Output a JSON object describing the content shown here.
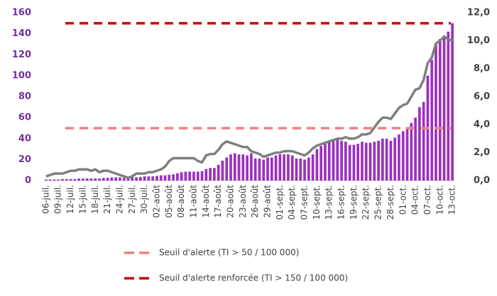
{
  "chart_data": {
    "type": "bar",
    "categories": [
      "06-juil.",
      null,
      null,
      "09-juil.",
      null,
      null,
      "12-juil.",
      null,
      null,
      "15-juil.",
      null,
      null,
      "18-juil.",
      null,
      null,
      "21-juil.",
      null,
      null,
      "24-juil.",
      null,
      null,
      "27-juil.",
      null,
      null,
      "30-juil.",
      null,
      null,
      "02-août",
      null,
      null,
      "05-août",
      null,
      null,
      "08-août",
      null,
      null,
      "11-août",
      null,
      null,
      "14-août",
      null,
      null,
      "17-août",
      null,
      null,
      "20-août",
      null,
      null,
      "23-août",
      null,
      null,
      "26-août",
      null,
      null,
      "29-août",
      null,
      null,
      "01-sept.",
      null,
      null,
      "04-sept.",
      null,
      null,
      "07-sept.",
      null,
      null,
      "10-sept.",
      null,
      null,
      "13-sept.",
      null,
      null,
      "16-sept.",
      null,
      null,
      "19-sept.",
      null,
      null,
      "22-sept.",
      null,
      null,
      "25-sept.",
      null,
      null,
      "28-sept.",
      null,
      null,
      "01-oct.",
      null,
      null,
      "04-oct.",
      null,
      null,
      "07-oct.",
      null,
      null,
      "10-oct.",
      null,
      null,
      "13-oct."
    ],
    "series": [
      {
        "color": "#9b30c0",
        "values": [
          1,
          1,
          1,
          1,
          1.5,
          1.5,
          1.5,
          1.5,
          2,
          2,
          2,
          2,
          2,
          2,
          2.5,
          2.5,
          3,
          3,
          3,
          2.5,
          2.5,
          3,
          3,
          3.5,
          4,
          4,
          4,
          4.5,
          5,
          5,
          5.5,
          6,
          7,
          8,
          8.5,
          8.5,
          8.5,
          8.5,
          9,
          11,
          12,
          12,
          15,
          19,
          22,
          25,
          26,
          25,
          25,
          24,
          26,
          21,
          21,
          20,
          22,
          22,
          24,
          25,
          25,
          25,
          24,
          21,
          21,
          20,
          22,
          25,
          30,
          33,
          35,
          37,
          39,
          40,
          38,
          37,
          34,
          34,
          35,
          37,
          36,
          36,
          37,
          38,
          40,
          40,
          38,
          41,
          44,
          47,
          50,
          55,
          60,
          70,
          75,
          100,
          115,
          130,
          135,
          138,
          142,
          150
        ]
      },
      {
        "type": "line",
        "axis": "y2",
        "color": "#7f7f7f",
        "values": [
          0.3,
          0.4,
          0.5,
          0.5,
          0.5,
          0.6,
          0.7,
          0.7,
          0.8,
          0.8,
          0.8,
          0.7,
          0.8,
          0.6,
          0.7,
          0.7,
          0.6,
          0.5,
          0.4,
          0.3,
          0.2,
          0.3,
          0.5,
          0.5,
          0.5,
          0.6,
          0.6,
          0.7,
          0.8,
          1.0,
          1.4,
          1.6,
          1.6,
          1.6,
          1.6,
          1.6,
          1.6,
          1.4,
          1.3,
          1.8,
          1.9,
          1.9,
          2.2,
          2.6,
          2.8,
          2.7,
          2.6,
          2.5,
          2.4,
          2.4,
          2.1,
          2.0,
          1.9,
          1.7,
          1.8,
          1.9,
          2.0,
          2.0,
          2.1,
          2.1,
          2.1,
          2.0,
          1.9,
          1.8,
          2.0,
          2.3,
          2.5,
          2.6,
          2.7,
          2.8,
          2.9,
          3.0,
          3.0,
          3.1,
          3.0,
          3.0,
          3.1,
          3.3,
          3.3,
          3.4,
          3.8,
          4.2,
          4.5,
          4.5,
          4.4,
          4.8,
          5.2,
          5.4,
          5.5,
          6.0,
          6.5,
          6.6,
          7.2,
          8.4,
          8.8,
          9.8,
          10.0,
          10.3,
          10.1,
          10.0
        ]
      }
    ],
    "thresholds": [
      {
        "name": "Seuil d'alerte (TI > 50 / 100 000)",
        "value": 50,
        "color": "#f08080"
      },
      {
        "name": "Seuil d'alerte renforcée (TI > 150 / 100 000)",
        "value": 150,
        "color": "#d00000"
      }
    ],
    "ylim": [
      0,
      160
    ],
    "yticks": [
      0,
      20,
      40,
      60,
      80,
      100,
      120,
      140,
      160
    ],
    "y2lim": [
      0,
      12
    ],
    "y2ticks": [
      {
        "value": 0,
        "label": "0,0"
      },
      {
        "value": 2,
        "label": "2,0"
      },
      {
        "value": 4,
        "label": "4,0"
      },
      {
        "value": 6,
        "label": "6,0"
      },
      {
        "value": 8,
        "label": "8,0"
      },
      {
        "value": 10,
        "label": "10,0"
      },
      {
        "value": 12,
        "label": "12,0"
      }
    ]
  }
}
